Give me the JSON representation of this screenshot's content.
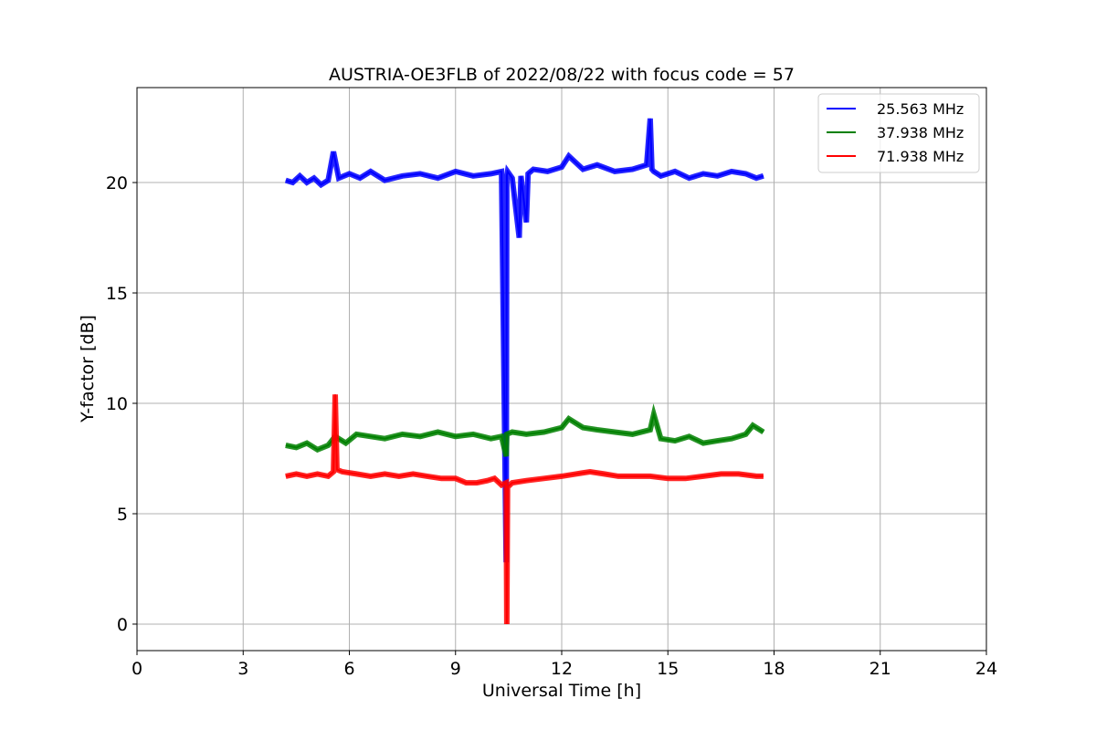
{
  "chart_data": {
    "type": "line",
    "title": "AUSTRIA-OE3FLB of 2022/08/22 with focus code = 57",
    "xlabel": "Universal Time [h]",
    "ylabel": "Y-factor [dB]",
    "xlim": [
      0,
      24
    ],
    "ylim": [
      -1.2,
      24.3
    ],
    "xticks": [
      0,
      3,
      6,
      9,
      12,
      15,
      18,
      21,
      24
    ],
    "yticks": [
      0,
      5,
      10,
      15,
      20
    ],
    "grid": true,
    "legend_position": "top-right",
    "series": [
      {
        "name": "25.563 MHz",
        "color": "#0000ff",
        "x": [
          4.2,
          4.4,
          4.6,
          4.8,
          5.0,
          5.2,
          5.4,
          5.55,
          5.7,
          6.0,
          6.3,
          6.6,
          7.0,
          7.5,
          8.0,
          8.5,
          9.0,
          9.5,
          10.0,
          10.3,
          10.43,
          10.45,
          10.47,
          10.6,
          10.8,
          10.85,
          11.0,
          11.05,
          11.2,
          11.6,
          12.0,
          12.2,
          12.6,
          13.0,
          13.5,
          14.0,
          14.4,
          14.5,
          14.55,
          14.6,
          14.8,
          15.2,
          15.6,
          16.0,
          16.4,
          16.8,
          17.2,
          17.5,
          17.7
        ],
        "y": [
          20.1,
          20.0,
          20.3,
          20.0,
          20.2,
          19.9,
          20.1,
          21.4,
          20.2,
          20.4,
          20.2,
          20.5,
          20.1,
          20.3,
          20.4,
          20.2,
          20.5,
          20.3,
          20.4,
          20.5,
          2.8,
          20.3,
          20.5,
          20.2,
          17.5,
          20.3,
          18.2,
          20.4,
          20.6,
          20.5,
          20.7,
          21.2,
          20.6,
          20.8,
          20.5,
          20.6,
          20.8,
          22.9,
          20.6,
          20.5,
          20.3,
          20.5,
          20.2,
          20.4,
          20.3,
          20.5,
          20.4,
          20.2,
          20.3
        ]
      },
      {
        "name": "37.938 MHz",
        "color": "#008000",
        "x": [
          4.2,
          4.5,
          4.8,
          5.1,
          5.4,
          5.6,
          5.9,
          6.2,
          6.6,
          7.0,
          7.5,
          8.0,
          8.5,
          9.0,
          9.5,
          10.0,
          10.3,
          10.43,
          10.45,
          10.6,
          11.0,
          11.5,
          12.0,
          12.2,
          12.6,
          13.0,
          13.5,
          14.0,
          14.5,
          14.6,
          14.8,
          15.2,
          15.6,
          16.0,
          16.4,
          16.8,
          17.2,
          17.4,
          17.7
        ],
        "y": [
          8.1,
          8.0,
          8.2,
          7.9,
          8.1,
          8.5,
          8.2,
          8.6,
          8.5,
          8.4,
          8.6,
          8.5,
          8.7,
          8.5,
          8.6,
          8.4,
          8.5,
          7.6,
          8.6,
          8.7,
          8.6,
          8.7,
          8.9,
          9.3,
          8.9,
          8.8,
          8.7,
          8.6,
          8.8,
          9.5,
          8.4,
          8.3,
          8.5,
          8.2,
          8.3,
          8.4,
          8.6,
          9.0,
          8.7
        ]
      },
      {
        "name": "71.938 MHz",
        "color": "#ff0000",
        "x": [
          4.2,
          4.5,
          4.8,
          5.1,
          5.4,
          5.55,
          5.6,
          5.65,
          5.8,
          6.2,
          6.6,
          7.0,
          7.4,
          7.8,
          8.2,
          8.6,
          9.0,
          9.3,
          9.6,
          9.9,
          10.1,
          10.3,
          10.43,
          10.45,
          10.47,
          10.6,
          11.0,
          11.5,
          12.0,
          12.4,
          12.8,
          13.2,
          13.6,
          14.0,
          14.5,
          15.0,
          15.5,
          16.0,
          16.5,
          17.0,
          17.5,
          17.7
        ],
        "y": [
          6.7,
          6.8,
          6.7,
          6.8,
          6.7,
          6.9,
          10.4,
          7.0,
          6.9,
          6.8,
          6.7,
          6.8,
          6.7,
          6.8,
          6.7,
          6.6,
          6.6,
          6.4,
          6.4,
          6.5,
          6.6,
          6.3,
          6.4,
          0.0,
          6.2,
          6.4,
          6.5,
          6.6,
          6.7,
          6.8,
          6.9,
          6.8,
          6.7,
          6.7,
          6.7,
          6.6,
          6.6,
          6.7,
          6.8,
          6.8,
          6.7,
          6.7
        ]
      }
    ]
  }
}
